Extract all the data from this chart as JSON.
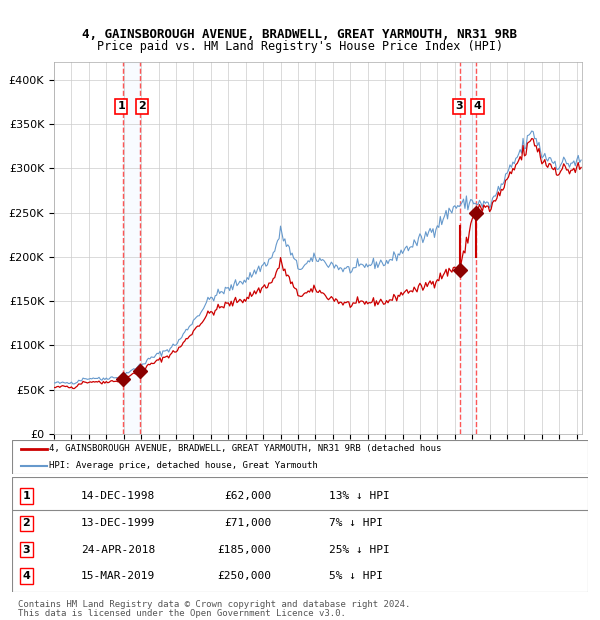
{
  "title1": "4, GAINSBOROUGH AVENUE, BRADWELL, GREAT YARMOUTH, NR31 9RB",
  "title2": "Price paid vs. HM Land Registry's House Price Index (HPI)",
  "transactions": [
    {
      "num": 1,
      "date": "14-DEC-1998",
      "price": 62000,
      "pct": "13%",
      "dir": "↓"
    },
    {
      "num": 2,
      "date": "13-DEC-1999",
      "price": 71000,
      "pct": "7%",
      "dir": "↓"
    },
    {
      "num": 3,
      "date": "24-APR-2018",
      "price": 185000,
      "pct": "25%",
      "dir": "↓"
    },
    {
      "num": 4,
      "date": "15-MAR-2019",
      "price": 250000,
      "pct": "5%",
      "dir": "↓"
    }
  ],
  "transaction_dates_decimal": [
    1998.95,
    1999.95,
    2018.31,
    2019.21
  ],
  "transaction_prices": [
    62000,
    71000,
    185000,
    250000
  ],
  "legend_line1": "4, GAINSBOROUGH AVENUE, BRADWELL, GREAT YARMOUTH, NR31 9RB (detached hous",
  "legend_line2": "HPI: Average price, detached house, Great Yarmouth",
  "hpi_color": "#6699cc",
  "price_color": "#cc0000",
  "marker_color": "#8b0000",
  "vline_color": "#ff4444",
  "vshade_color": "#ddeeff",
  "grid_color": "#cccccc",
  "background_color": "#ffffff",
  "footer": "Contains HM Land Registry data © Crown copyright and database right 2024.\nThis data is licensed under the Open Government Licence v3.0.",
  "ylim": [
    0,
    420000
  ],
  "yticks": [
    0,
    50000,
    100000,
    150000,
    200000,
    250000,
    300000,
    350000,
    400000
  ],
  "ytick_labels": [
    "£0",
    "£50K",
    "£100K",
    "£150K",
    "£200K",
    "£250K",
    "£300K",
    "£350K",
    "£400K"
  ]
}
